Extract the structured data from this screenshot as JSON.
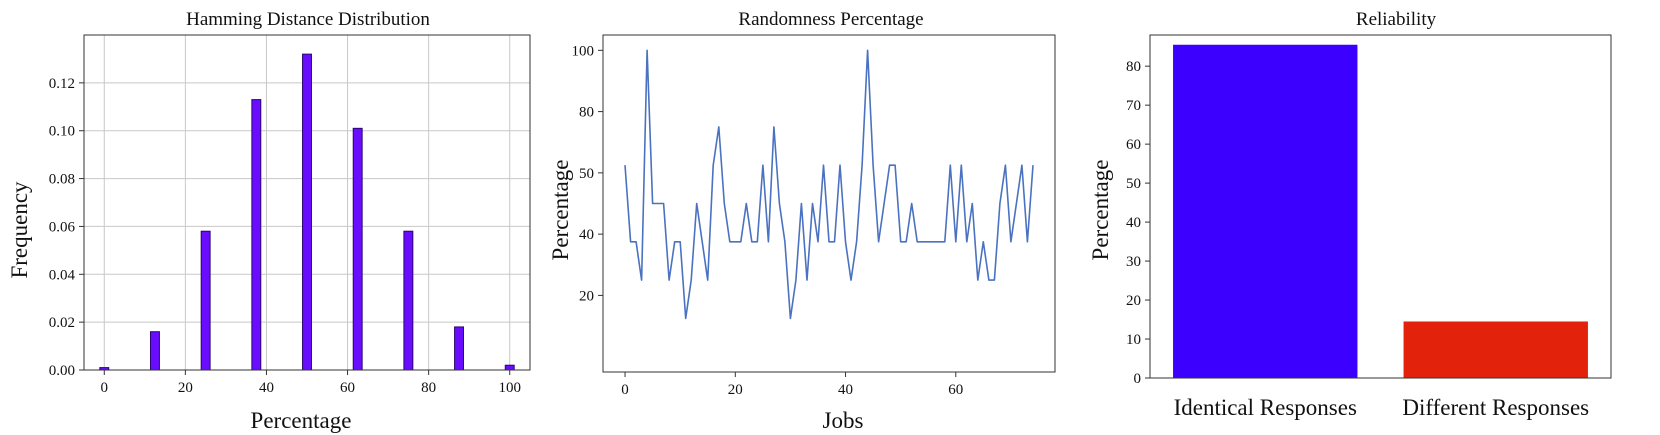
{
  "colors": {
    "hist_bar": "#6a0dff",
    "hist_edge": "#2a0570",
    "line": "#4a72c0",
    "identical": "#3c00ff",
    "different": "#e3220c",
    "grid": "#c8c8c8"
  },
  "chart_data": [
    {
      "type": "bar",
      "title": "Hamming Distance Distribution",
      "xlabel": "Percentage",
      "ylabel": "Frequency",
      "grid": true,
      "xlim": [
        -5,
        105
      ],
      "ylim": [
        0,
        0.14
      ],
      "xticks": [
        "0",
        "20",
        "40",
        "60",
        "80",
        "100"
      ],
      "yticks": [
        "0.00",
        "0.02",
        "0.04",
        "0.06",
        "0.08",
        "0.10",
        "0.12"
      ],
      "x": [
        0,
        12.5,
        25,
        37.5,
        50,
        62.5,
        75,
        87.5,
        100
      ],
      "values": [
        0.001,
        0.016,
        0.058,
        0.113,
        0.132,
        0.101,
        0.058,
        0.018,
        0.002
      ]
    },
    {
      "type": "line",
      "title": "Randomness Percentage",
      "xlabel": "Jobs",
      "ylabel": "Percentage",
      "grid": false,
      "xlim": [
        -4,
        78
      ],
      "ylim": [
        -5,
        105
      ],
      "xticks": [
        "0",
        "20",
        "40",
        "60"
      ],
      "yticks": [
        "20",
        "40",
        "50",
        "80",
        "100"
      ],
      "x": [
        0,
        1,
        2,
        3,
        4,
        5,
        6,
        7,
        8,
        9,
        10,
        11,
        12,
        13,
        14,
        15,
        16,
        17,
        18,
        19,
        20,
        21,
        22,
        23,
        24,
        25,
        26,
        27,
        28,
        29,
        30,
        31,
        32,
        33,
        34,
        35,
        36,
        37,
        38,
        39,
        40,
        41,
        42,
        43,
        44,
        45,
        46,
        47,
        48,
        49,
        50,
        51,
        52,
        53,
        54,
        55,
        56,
        57,
        58,
        59,
        60,
        61,
        62,
        63,
        64,
        65,
        66,
        67,
        68,
        69,
        70,
        71,
        72,
        73,
        74
      ],
      "values": [
        62.5,
        37.5,
        37.5,
        25,
        100,
        50,
        50,
        50,
        25,
        37.5,
        37.5,
        12.5,
        25,
        50,
        37.5,
        25,
        62.5,
        75,
        50,
        37.5,
        37.5,
        37.5,
        50,
        37.5,
        37.5,
        62.5,
        37.5,
        75,
        50,
        37.5,
        12.5,
        25,
        50,
        25,
        50,
        37.5,
        62.5,
        37.5,
        37.5,
        62.5,
        37.5,
        25,
        37.5,
        62.5,
        100,
        62.5,
        37.5,
        50,
        62.5,
        62.5,
        37.5,
        37.5,
        50,
        37.5,
        37.5,
        37.5,
        37.5,
        37.5,
        37.5,
        62.5,
        37.5,
        62.5,
        37.5,
        50,
        25,
        37.5,
        25,
        25,
        50,
        62.5,
        37.5,
        50,
        62.5,
        37.5,
        62.5
      ]
    },
    {
      "type": "bar",
      "title": "Reliability",
      "xlabel": "",
      "ylabel": "Percentage",
      "grid": false,
      "ylim": [
        0,
        88
      ],
      "yticks": [
        "0",
        "10",
        "20",
        "30",
        "40",
        "50",
        "60",
        "70",
        "80"
      ],
      "categories": [
        "Identical Responses",
        "Different Responses"
      ],
      "values": [
        85.5,
        14.5
      ]
    }
  ]
}
